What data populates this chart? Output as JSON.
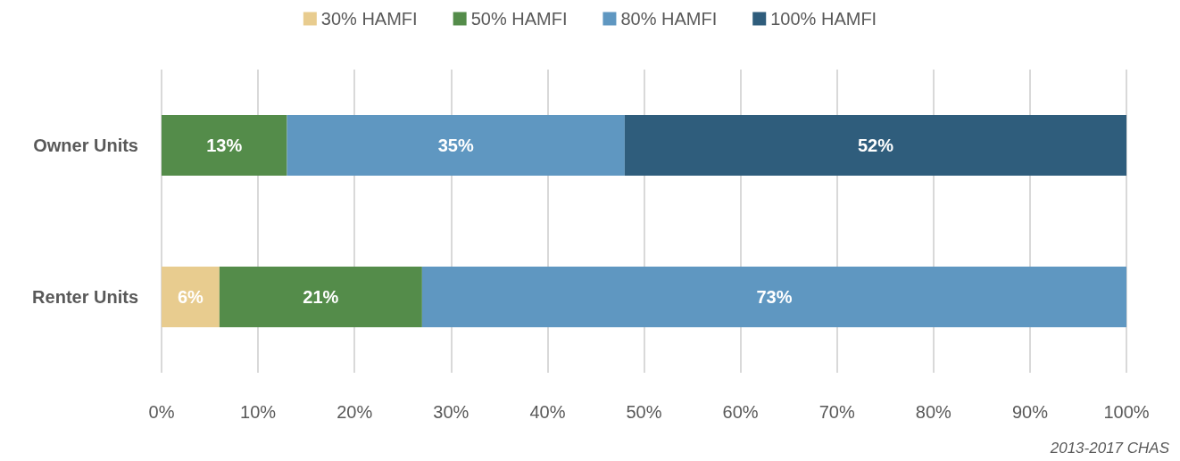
{
  "chart_data": {
    "type": "bar",
    "orientation": "horizontal",
    "stacked": true,
    "categories": [
      "Owner Units",
      "Renter Units"
    ],
    "series": [
      {
        "name": "30% HAMFI",
        "color": "#e8cc8f",
        "values": [
          null,
          6
        ],
        "value_labels": [
          null,
          "6%"
        ]
      },
      {
        "name": "50% HAMFI",
        "color": "#548c4a",
        "values": [
          13,
          21
        ],
        "value_labels": [
          "13%",
          "21%"
        ]
      },
      {
        "name": "80% HAMFI",
        "color": "#5f97c1",
        "values": [
          35,
          73
        ],
        "value_labels": [
          "35%",
          "73%"
        ]
      },
      {
        "name": "100% HAMFI",
        "color": "#2f5d7c",
        "values": [
          52,
          null
        ],
        "value_labels": [
          "52%",
          null
        ]
      }
    ],
    "xlim": [
      0,
      100
    ],
    "xticks": [
      {
        "value": 0,
        "label": "0%"
      },
      {
        "value": 10,
        "label": "10%"
      },
      {
        "value": 20,
        "label": "20%"
      },
      {
        "value": 30,
        "label": "30%"
      },
      {
        "value": 40,
        "label": "40%"
      },
      {
        "value": 50,
        "label": "50%"
      },
      {
        "value": 60,
        "label": "60%"
      },
      {
        "value": 70,
        "label": "70%"
      },
      {
        "value": 80,
        "label": "80%"
      },
      {
        "value": 90,
        "label": "90%"
      },
      {
        "value": 100,
        "label": "100%"
      }
    ],
    "grid": "x",
    "legend": "top",
    "annotations": [
      "2013-2017 CHAS"
    ]
  }
}
